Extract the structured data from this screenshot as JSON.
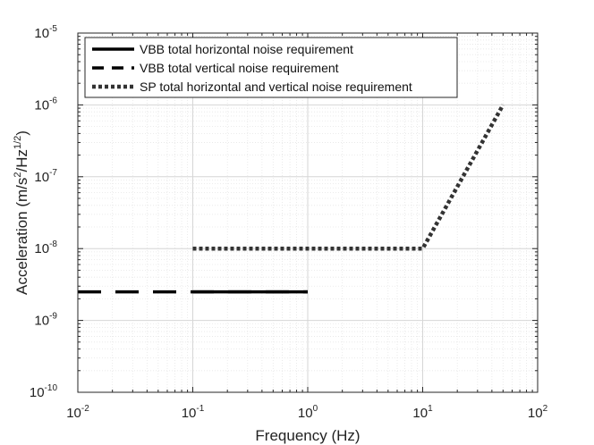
{
  "chart_data": {
    "type": "line",
    "x_scale": "log",
    "y_scale": "log",
    "xlabel": "Frequency (Hz)",
    "ylabel": {
      "prefix": "Acceleration (m/s",
      "sup1": "2",
      "mid": "/Hz",
      "sup2": "1/2",
      "suffix": ")"
    },
    "xlim": [
      0.01,
      100
    ],
    "ylim": [
      1e-10,
      1e-05
    ],
    "x_ticks": [
      {
        "base": "10",
        "exp": "-2",
        "value": 0.01
      },
      {
        "base": "10",
        "exp": "-1",
        "value": 0.1
      },
      {
        "base": "10",
        "exp": "0",
        "value": 1
      },
      {
        "base": "10",
        "exp": "1",
        "value": 10
      },
      {
        "base": "10",
        "exp": "2",
        "value": 100
      }
    ],
    "y_ticks": [
      {
        "base": "10",
        "exp": "-10",
        "value": 1e-10
      },
      {
        "base": "10",
        "exp": "-9",
        "value": 1e-09
      },
      {
        "base": "10",
        "exp": "-8",
        "value": 1e-08
      },
      {
        "base": "10",
        "exp": "-7",
        "value": 1e-07
      },
      {
        "base": "10",
        "exp": "-6",
        "value": 1e-06
      },
      {
        "base": "10",
        "exp": "-5",
        "value": 1e-05
      }
    ],
    "grid": true,
    "legend_position": "top-left",
    "series": [
      {
        "name": "VBB total horizontal noise requirement",
        "style": "solid",
        "color": "#000000",
        "points": [
          [
            0.1,
            2.5e-09
          ],
          [
            1,
            2.5e-09
          ]
        ]
      },
      {
        "name": "VBB total vertical noise requirement",
        "style": "dashed",
        "color": "#000000",
        "points": [
          [
            0.01,
            2.5e-09
          ],
          [
            1,
            2.5e-09
          ]
        ]
      },
      {
        "name": "SP total horizontal and vertical noise requirement",
        "style": "dotted",
        "color": "#333333",
        "points": [
          [
            0.1,
            1e-08
          ],
          [
            10,
            1e-08
          ],
          [
            50,
            1e-06
          ]
        ]
      }
    ]
  }
}
